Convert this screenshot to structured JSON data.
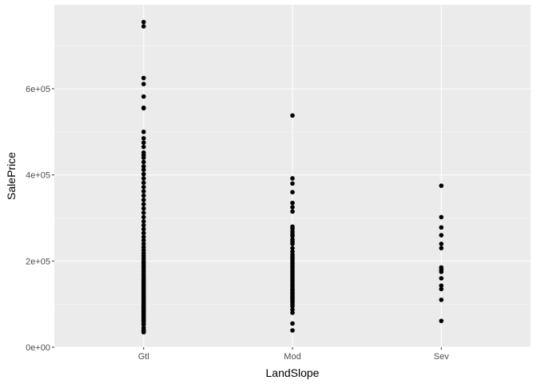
{
  "colors": {
    "panel": "#ebebeb",
    "grid_major": "#ffffff",
    "grid_minor": "#f5f5f5",
    "point": "#000000",
    "tick": "#333333"
  },
  "chart_data": {
    "type": "scatter",
    "xlabel": "LandSlope",
    "ylabel": "SalePrice",
    "categories": [
      "Gtl",
      "Mod",
      "Sev"
    ],
    "ylim": [
      0,
      755000
    ],
    "yticks": [
      0,
      200000,
      400000,
      600000
    ],
    "ytick_labels": [
      "0e+00",
      "2e+05",
      "4e+05",
      "6e+05"
    ],
    "grid": true,
    "legend": "none",
    "points": {
      "Gtl": [
        34900,
        37900,
        40000,
        45000,
        52000,
        55000,
        60000,
        62000,
        65000,
        68000,
        70000,
        73000,
        75000,
        78000,
        80000,
        82000,
        85000,
        88000,
        90000,
        93000,
        95000,
        98000,
        100000,
        103000,
        106000,
        110000,
        113000,
        116000,
        120000,
        124000,
        128000,
        132000,
        136000,
        140000,
        144000,
        148000,
        152000,
        156000,
        160000,
        165000,
        170000,
        175000,
        180000,
        185000,
        190000,
        195000,
        200000,
        206000,
        212000,
        218000,
        225000,
        232000,
        240000,
        248000,
        256000,
        265000,
        274000,
        283000,
        292000,
        302000,
        312000,
        322000,
        332000,
        342000,
        352000,
        362000,
        372000,
        382000,
        392000,
        402000,
        412000,
        420000,
        430000,
        440000,
        446000,
        452000,
        465000,
        475000,
        485000,
        500000,
        555000,
        556000,
        582000,
        611000,
        625000,
        745000,
        755000
      ],
      "Mod": [
        39000,
        55000,
        80000,
        87000,
        95000,
        100000,
        105000,
        108000,
        112000,
        115000,
        118000,
        122000,
        125000,
        128000,
        132000,
        135000,
        140000,
        145000,
        150000,
        155000,
        160000,
        165000,
        170000,
        175000,
        180000,
        185000,
        190000,
        195000,
        200000,
        205000,
        210000,
        215000,
        222000,
        230000,
        240000,
        245000,
        250000,
        258000,
        262000,
        268000,
        275000,
        280000,
        315000,
        325000,
        335000,
        360000,
        380000,
        392000,
        538000
      ],
      "Sev": [
        61000,
        110000,
        135000,
        143000,
        160000,
        175000,
        180000,
        185000,
        230000,
        240000,
        260000,
        278000,
        302000,
        375000
      ]
    }
  }
}
